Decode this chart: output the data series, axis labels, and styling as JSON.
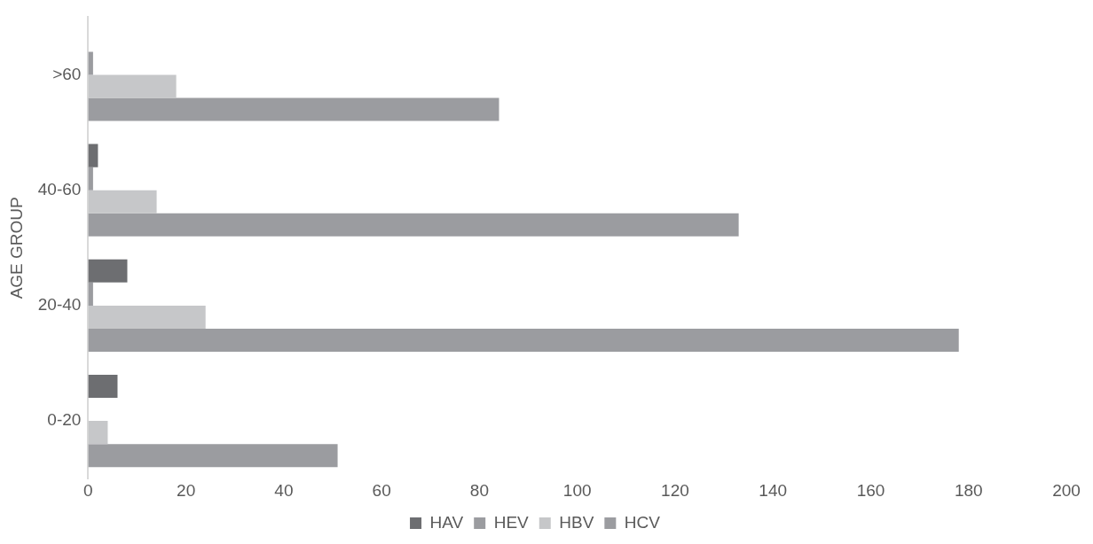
{
  "chart_data": {
    "type": "bar",
    "orientation": "horizontal",
    "ylabel": "AGE GROUP",
    "categories": [
      ">60",
      "40-60",
      "20-40",
      "0-20"
    ],
    "series": [
      {
        "name": "HAV",
        "color": "#6d6e71",
        "values": [
          0,
          2,
          8,
          6
        ]
      },
      {
        "name": "HEV",
        "color": "#9b9ca0",
        "values": [
          1,
          1,
          1,
          0
        ]
      },
      {
        "name": "HBV",
        "color": "#c6c7c9",
        "values": [
          18,
          14,
          24,
          4
        ]
      },
      {
        "name": "HCV",
        "color": "#9b9ca0",
        "values": [
          84,
          133,
          178,
          51
        ]
      }
    ],
    "xlim": [
      0,
      200
    ],
    "xticks": [
      0,
      20,
      40,
      60,
      80,
      100,
      120,
      140,
      160,
      180,
      200
    ],
    "grid": false,
    "legend": "bottom"
  }
}
